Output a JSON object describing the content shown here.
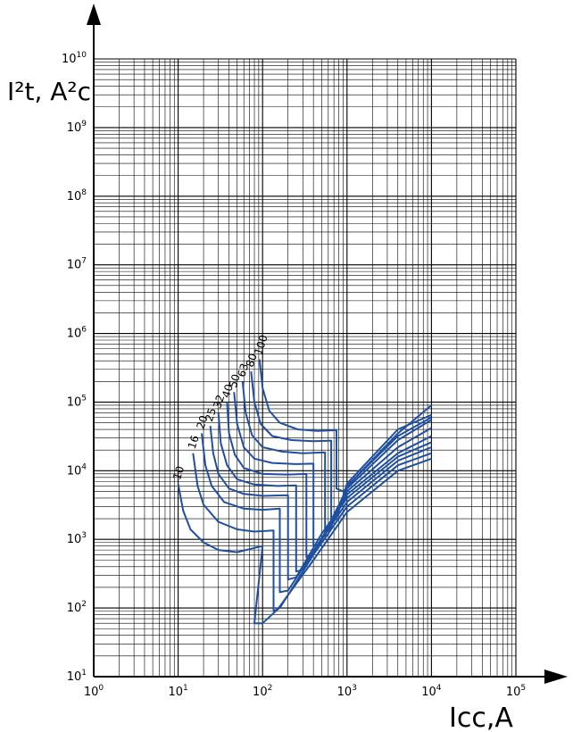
{
  "chart_data": {
    "type": "line",
    "title": "",
    "xlabel": "Icc,A",
    "ylabel": "I²t, A²c",
    "x_scale": "log",
    "y_scale": "log",
    "xlim": [
      1,
      100000
    ],
    "ylim": [
      10,
      10000000000
    ],
    "grid": true,
    "x_ticks": [
      {
        "base": "10",
        "exp": "0"
      },
      {
        "base": "10",
        "exp": "1"
      },
      {
        "base": "10",
        "exp": "2"
      },
      {
        "base": "10",
        "exp": "3"
      },
      {
        "base": "10",
        "exp": "4"
      },
      {
        "base": "10",
        "exp": "5"
      }
    ],
    "y_ticks": [
      {
        "base": "10",
        "exp": "1"
      },
      {
        "base": "10",
        "exp": "2"
      },
      {
        "base": "10",
        "exp": "3"
      },
      {
        "base": "10",
        "exp": "4"
      },
      {
        "base": "10",
        "exp": "5"
      },
      {
        "base": "10",
        "exp": "6"
      },
      {
        "base": "10",
        "exp": "7"
      },
      {
        "base": "10",
        "exp": "8"
      },
      {
        "base": "10",
        "exp": "9"
      },
      {
        "base": "10",
        "exp": "10"
      }
    ],
    "series": [
      {
        "name": "10",
        "points": [
          [
            10,
            6400
          ],
          [
            11.5,
            2600
          ],
          [
            14,
            1400
          ],
          [
            20,
            900
          ],
          [
            30,
            700
          ],
          [
            50,
            650
          ],
          [
            80,
            750
          ],
          [
            100,
            800
          ],
          [
            80,
            60
          ],
          [
            100,
            60
          ],
          [
            150,
            95
          ],
          [
            400,
            500
          ],
          [
            1000,
            2500
          ],
          [
            4000,
            10000
          ],
          [
            10000,
            15000
          ]
        ]
      },
      {
        "name": "16",
        "points": [
          [
            15,
            18000
          ],
          [
            17,
            6000
          ],
          [
            20,
            3200
          ],
          [
            30,
            1800
          ],
          [
            50,
            1400
          ],
          [
            80,
            1300
          ],
          [
            135,
            1350
          ],
          [
            135,
            90
          ],
          [
            160,
            100
          ],
          [
            400,
            600
          ],
          [
            1000,
            3000
          ],
          [
            4000,
            12000
          ],
          [
            10000,
            18000
          ]
        ]
      },
      {
        "name": "20",
        "points": [
          [
            19,
            35000
          ],
          [
            21,
            12000
          ],
          [
            25,
            6000
          ],
          [
            35,
            3500
          ],
          [
            60,
            2800
          ],
          [
            100,
            2700
          ],
          [
            160,
            2800
          ],
          [
            160,
            170
          ],
          [
            200,
            180
          ],
          [
            500,
            1000
          ],
          [
            1000,
            3500
          ],
          [
            4000,
            14000
          ],
          [
            10000,
            22000
          ]
        ]
      },
      {
        "name": "25",
        "points": [
          [
            24,
            45000
          ],
          [
            26,
            18000
          ],
          [
            30,
            9000
          ],
          [
            40,
            5500
          ],
          [
            60,
            4600
          ],
          [
            100,
            4300
          ],
          [
            200,
            4400
          ],
          [
            200,
            260
          ],
          [
            250,
            280
          ],
          [
            500,
            1200
          ],
          [
            1000,
            4000
          ],
          [
            4000,
            16000
          ],
          [
            10000,
            26000
          ]
        ]
      },
      {
        "name": "32",
        "points": [
          [
            30,
            70000
          ],
          [
            32,
            25000
          ],
          [
            38,
            12000
          ],
          [
            50,
            7500
          ],
          [
            80,
            6300
          ],
          [
            150,
            6000
          ],
          [
            250,
            6100
          ],
          [
            250,
            340
          ],
          [
            300,
            360
          ],
          [
            600,
            1500
          ],
          [
            1000,
            4500
          ],
          [
            4000,
            18000
          ],
          [
            10000,
            32000
          ]
        ]
      },
      {
        "name": "40",
        "points": [
          [
            38,
            100000
          ],
          [
            40,
            35000
          ],
          [
            47,
            17000
          ],
          [
            60,
            11000
          ],
          [
            100,
            9000
          ],
          [
            200,
            8800
          ],
          [
            330,
            9000
          ],
          [
            330,
            550
          ],
          [
            380,
            600
          ],
          [
            700,
            2000
          ],
          [
            1000,
            5000
          ],
          [
            4000,
            22000
          ],
          [
            10000,
            42000
          ]
        ]
      },
      {
        "name": "50",
        "points": [
          [
            46,
            140000
          ],
          [
            50,
            48000
          ],
          [
            60,
            22000
          ],
          [
            80,
            15000
          ],
          [
            130,
            13000
          ],
          [
            250,
            12500
          ],
          [
            400,
            12700
          ],
          [
            400,
            800
          ],
          [
            470,
            850
          ],
          [
            1000,
            5500
          ],
          [
            4000,
            28000
          ],
          [
            10000,
            55000
          ]
        ]
      },
      {
        "name": "63",
        "points": [
          [
            58,
            200000
          ],
          [
            63,
            70000
          ],
          [
            75,
            33000
          ],
          [
            100,
            22000
          ],
          [
            170,
            19000
          ],
          [
            300,
            18000
          ],
          [
            550,
            18500
          ],
          [
            550,
            1100
          ],
          [
            600,
            1200
          ],
          [
            1000,
            6000
          ],
          [
            4000,
            32000
          ],
          [
            10000,
            60000
          ]
        ]
      },
      {
        "name": "80",
        "points": [
          [
            73,
            280000
          ],
          [
            80,
            100000
          ],
          [
            95,
            48000
          ],
          [
            130,
            32000
          ],
          [
            220,
            28000
          ],
          [
            400,
            27000
          ],
          [
            650,
            27500
          ],
          [
            650,
            1800
          ],
          [
            750,
            2000
          ],
          [
            1000,
            6500
          ],
          [
            4000,
            40000
          ],
          [
            10000,
            65000
          ]
        ]
      },
      {
        "name": "100",
        "points": [
          [
            92,
            420000
          ],
          [
            100,
            160000
          ],
          [
            120,
            75000
          ],
          [
            160,
            50000
          ],
          [
            260,
            40000
          ],
          [
            450,
            38000
          ],
          [
            750,
            39000
          ],
          [
            750,
            5500
          ],
          [
            900,
            5000
          ],
          [
            1500,
            10000
          ],
          [
            4000,
            35000
          ],
          [
            10000,
            90000
          ]
        ]
      }
    ]
  }
}
